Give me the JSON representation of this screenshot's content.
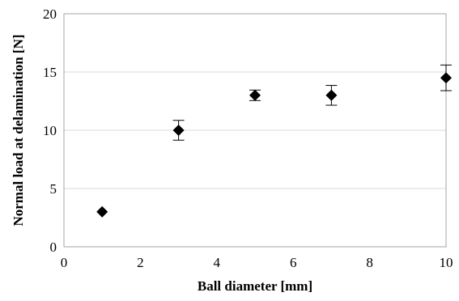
{
  "chart_data": {
    "type": "scatter",
    "title": "",
    "xlabel": "Ball diameter [mm]",
    "ylabel": "Normal load at delamination [N]",
    "xlim": [
      0,
      10
    ],
    "ylim": [
      0,
      20
    ],
    "xticks": [
      0,
      2,
      4,
      6,
      8,
      10
    ],
    "yticks": [
      0,
      5,
      10,
      15,
      20
    ],
    "grid": "horizontal",
    "legend": "none",
    "marker": "diamond",
    "colors": {
      "marker": "#000000",
      "gridline": "#d9d9d9",
      "plot_border": "#a6a6a6"
    },
    "series": [
      {
        "points": [
          {
            "x": 1,
            "y": 3.0,
            "err": 0
          },
          {
            "x": 3,
            "y": 10.0,
            "err": 0.85
          },
          {
            "x": 5,
            "y": 13.0,
            "err": 0.45
          },
          {
            "x": 7,
            "y": 13.0,
            "err": 0.85
          },
          {
            "x": 10,
            "y": 14.5,
            "err": 1.1
          }
        ]
      }
    ]
  }
}
